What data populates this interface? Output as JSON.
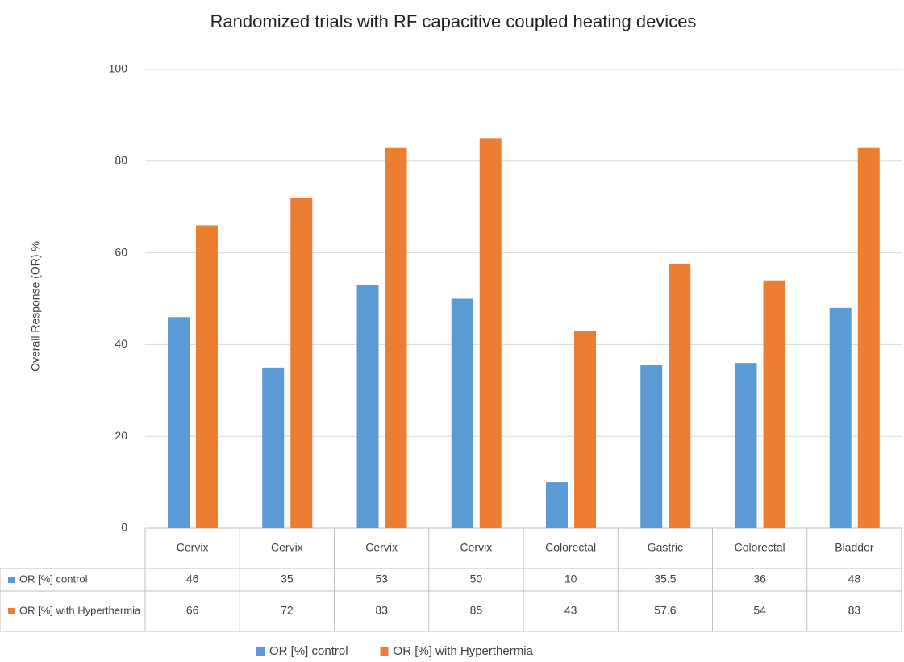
{
  "chart_data": {
    "type": "bar",
    "title": "Randomized trials with RF capacitive coupled heating devices",
    "y_label": "Overall Response (OR) %",
    "categories": [
      "Cervix",
      "Cervix",
      "Cervix",
      "Cervix",
      "Colorectal",
      "Gastric",
      "Colorectal",
      "Bladder"
    ],
    "series": [
      {
        "name": "OR [%] control",
        "color": "#5b9bd5",
        "values": [
          46,
          35,
          53,
          50,
          10,
          35.5,
          36,
          48
        ]
      },
      {
        "name": "OR [%] with Hyperthermia",
        "color": "#ed7d31",
        "values": [
          66,
          72,
          83,
          85,
          43,
          57.6,
          54,
          83
        ]
      }
    ],
    "ylim": [
      0,
      100
    ],
    "yticks": [
      0,
      20,
      40,
      60,
      80,
      100
    ],
    "grid": true,
    "legend": "bottom"
  }
}
